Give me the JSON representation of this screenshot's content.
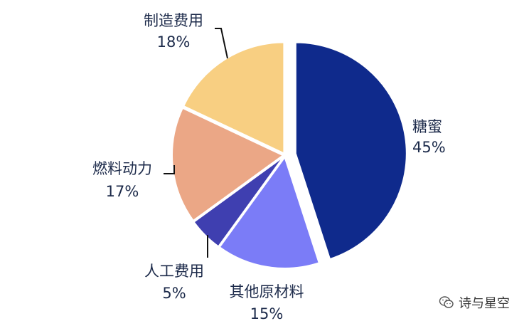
{
  "chart_data": {
    "type": "pie",
    "title": "",
    "slices": [
      {
        "label": "糖蜜",
        "percent_text": "45%",
        "value": 45,
        "color": "#0f2a8c"
      },
      {
        "label": "其他原材料",
        "percent_text": "15%",
        "value": 15,
        "color": "#7b7cf7"
      },
      {
        "label": "人工费用",
        "percent_text": "5%",
        "value": 5,
        "color": "#3f3fb0"
      },
      {
        "label": "燃料动力",
        "percent_text": "17%",
        "value": 17,
        "color": "#eba786"
      },
      {
        "label": "制造费用",
        "percent_text": "18%",
        "value": 18,
        "color": "#f8cf82"
      }
    ],
    "exploded": [
      "糖蜜"
    ]
  },
  "watermark": {
    "text": "诗与星空",
    "icon": "wechat-icon"
  }
}
